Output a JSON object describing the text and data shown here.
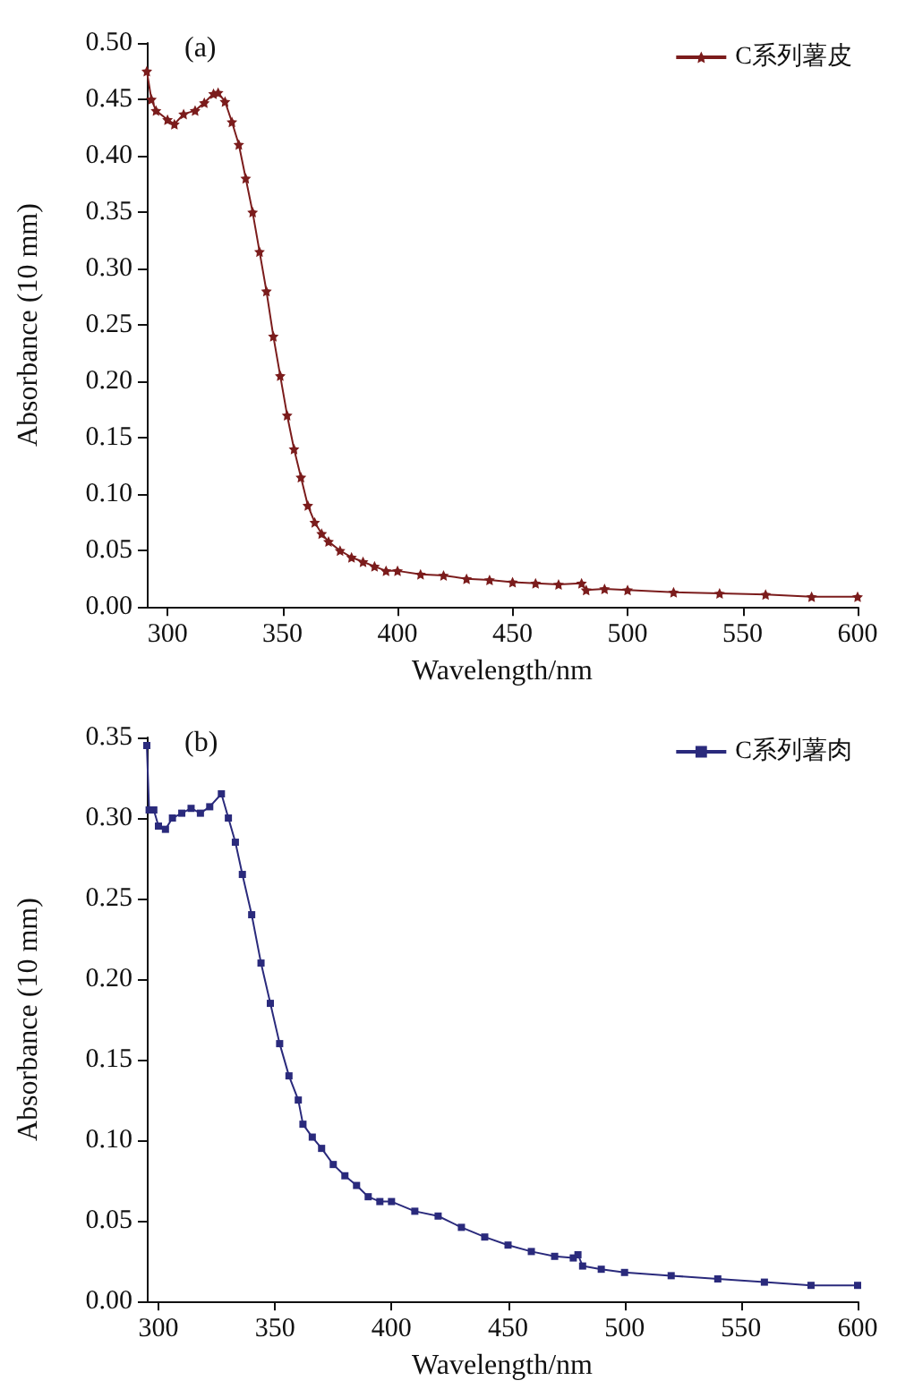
{
  "chart_data": [
    {
      "type": "line",
      "title": "(a)",
      "xlabel": "Wavelength/nm",
      "ylabel": "Absorbance (10 mm)",
      "xlim": [
        291,
        600
      ],
      "xticks": [
        300,
        350,
        400,
        450,
        500,
        550,
        600
      ],
      "ylim": [
        0,
        0.5
      ],
      "yticks": [
        {
          "value": 0,
          "label": "0.00"
        },
        0.05,
        {
          "value": 0.1,
          "label": "0.10"
        },
        0.15,
        {
          "value": 0.2,
          "label": "0.20"
        },
        0.25,
        {
          "value": 0.3,
          "label": "0.30"
        },
        0.35,
        {
          "value": 0.4,
          "label": "0.40"
        },
        0.45,
        {
          "value": 0.5,
          "label": "0.50"
        }
      ],
      "legend": "top right",
      "marker": "star",
      "grid": false,
      "series": [
        {
          "name": "C系列薯皮",
          "color": "#7b1c1c",
          "x": [
            291,
            293,
            295,
            300,
            303,
            307,
            312,
            316,
            320,
            322,
            325,
            328,
            331,
            334,
            337,
            340,
            343,
            346,
            349,
            352,
            355,
            358,
            361,
            364,
            367,
            370,
            375,
            380,
            385,
            390,
            395,
            400,
            410,
            420,
            430,
            440,
            450,
            460,
            470,
            480,
            482,
            490,
            500,
            520,
            540,
            560,
            580,
            600
          ],
          "values": [
            0.475,
            0.45,
            0.44,
            0.432,
            0.428,
            0.437,
            0.44,
            0.447,
            0.455,
            0.456,
            0.448,
            0.43,
            0.41,
            0.38,
            0.35,
            0.315,
            0.28,
            0.24,
            0.205,
            0.17,
            0.14,
            0.115,
            0.09,
            0.075,
            0.065,
            0.058,
            0.05,
            0.044,
            0.04,
            0.036,
            0.032,
            0.032,
            0.029,
            0.028,
            0.025,
            0.024,
            0.022,
            0.021,
            0.02,
            0.021,
            0.015,
            0.016,
            0.015,
            0.013,
            0.012,
            0.011,
            0.009,
            0.009
          ]
        }
      ]
    },
    {
      "type": "line",
      "title": "(b)",
      "xlabel": "Wavelength/nm",
      "ylabel": "Absorbance (10 mm)",
      "xlim": [
        295,
        600
      ],
      "xticks": [
        300,
        350,
        400,
        450,
        500,
        550,
        600
      ],
      "ylim": [
        0,
        0.35
      ],
      "yticks": [
        {
          "value": 0,
          "label": "0.00"
        },
        0.05,
        {
          "value": 0.1,
          "label": "0.10"
        },
        0.15,
        {
          "value": 0.2,
          "label": "0.20"
        },
        0.25,
        {
          "value": 0.3,
          "label": "0.30"
        },
        0.35
      ],
      "legend": "top right",
      "marker": "square",
      "grid": false,
      "series": [
        {
          "name": "C系列薯肉",
          "color": "#2a2a7c",
          "x": [
            295,
            296,
            298,
            300,
            303,
            306,
            310,
            314,
            318,
            322,
            327,
            330,
            333,
            336,
            340,
            344,
            348,
            352,
            356,
            360,
            362,
            366,
            370,
            375,
            380,
            385,
            390,
            395,
            400,
            410,
            420,
            430,
            440,
            450,
            460,
            470,
            478,
            480,
            482,
            490,
            500,
            520,
            540,
            560,
            580,
            600
          ],
          "values": [
            0.345,
            0.305,
            0.305,
            0.295,
            0.293,
            0.3,
            0.303,
            0.306,
            0.303,
            0.307,
            0.315,
            0.3,
            0.285,
            0.265,
            0.24,
            0.21,
            0.185,
            0.16,
            0.14,
            0.125,
            0.11,
            0.102,
            0.095,
            0.085,
            0.078,
            0.072,
            0.065,
            0.062,
            0.062,
            0.056,
            0.053,
            0.046,
            0.04,
            0.035,
            0.031,
            0.028,
            0.027,
            0.029,
            0.022,
            0.02,
            0.018,
            0.016,
            0.014,
            0.012,
            0.01,
            0.01
          ]
        }
      ]
    }
  ]
}
